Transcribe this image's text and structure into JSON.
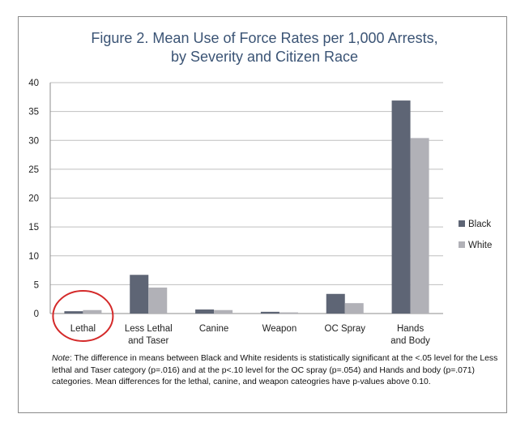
{
  "chart_data": {
    "type": "bar",
    "title_lines": [
      "Figure 2.  Mean Use of Force Rates per 1,000 Arrests,",
      "by Severity and Citizen Race"
    ],
    "categories": [
      "Lethal",
      "Less Lethal and Taser",
      "Canine",
      "Weapon",
      "OC Spray",
      "Hands and Body"
    ],
    "category_label_lines": [
      [
        "Lethal"
      ],
      [
        "Less Lethal",
        "and Taser"
      ],
      [
        "Canine"
      ],
      [
        "Weapon"
      ],
      [
        "OC Spray"
      ],
      [
        "Hands",
        "and Body"
      ]
    ],
    "series": [
      {
        "name": "Black",
        "color": "#5e6575",
        "values": [
          0.4,
          6.7,
          0.7,
          0.3,
          3.4,
          36.9
        ]
      },
      {
        "name": "White",
        "color": "#b1b1b7",
        "values": [
          0.6,
          4.5,
          0.6,
          0.2,
          1.8,
          30.4
        ]
      }
    ],
    "xlabel": "",
    "ylabel": "",
    "ylim": [
      0,
      40
    ],
    "yticks": [
      0,
      5,
      10,
      15,
      20,
      25,
      30,
      35,
      40
    ],
    "grid": true,
    "legend_position": "right",
    "highlight_category": "Lethal",
    "highlight_color": "#d42a2a"
  },
  "note": {
    "label": "Note",
    "text": ": The difference in means between Black and White residents is statistically significant at the <.05 level for the Less lethal and Taser category (p=.016) and at the p<.10 level for the OC spray (p=.054) and Hands and body (p=.071) categories.  Mean differences for the lethal, canine, and weapon cateogries have p-values above 0.10."
  },
  "colors": {
    "title": "#3b5475",
    "grid": "#bfbfbf",
    "axis": "#8c8c8c",
    "frame": "#8a8a8a"
  }
}
